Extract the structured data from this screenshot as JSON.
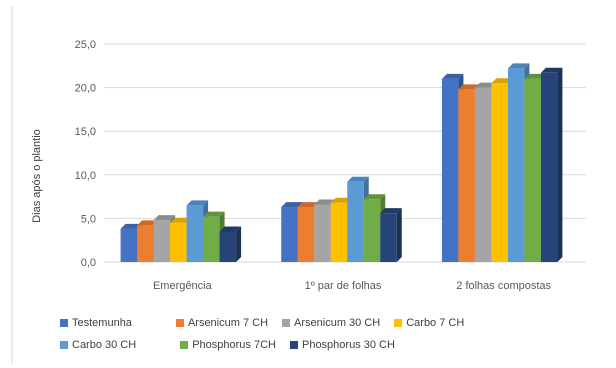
{
  "chart_data": {
    "type": "bar",
    "ylabel": "Dias após o plantio",
    "xlabel": "",
    "ylim": [
      0,
      25
    ],
    "yticks": [
      "0,0",
      "5,0",
      "10,0",
      "15,0",
      "20,0",
      "25,0"
    ],
    "ytick_values": [
      0,
      5,
      10,
      15,
      20,
      25
    ],
    "grid": true,
    "legend_position": "bottom",
    "categories": [
      "Emergência",
      "1º par de folhas",
      "2 folhas compostas"
    ],
    "series": [
      {
        "name": "Testemunha",
        "color": "#4472C4",
        "values": [
          3.8,
          6.3,
          21.0
        ]
      },
      {
        "name": "Arsenicum 7 CH",
        "color": "#ED7D31",
        "values": [
          4.2,
          6.3,
          19.8
        ]
      },
      {
        "name": "Arsenicum 30 CH",
        "color": "#A5A5A5",
        "values": [
          4.8,
          6.6,
          20.0
        ]
      },
      {
        "name": "Carbo 7 CH",
        "color": "#FFC000",
        "values": [
          4.5,
          6.8,
          20.5
        ]
      },
      {
        "name": "Carbo 30 CH",
        "color": "#5B9BD5",
        "values": [
          6.5,
          9.2,
          22.2
        ]
      },
      {
        "name": "Phosphorus 7CH",
        "color": "#70AD47",
        "values": [
          5.2,
          7.2,
          21.0
        ]
      },
      {
        "name": "Phosphorus 30 CH",
        "color": "#264478",
        "values": [
          3.5,
          5.6,
          21.7
        ]
      }
    ]
  }
}
